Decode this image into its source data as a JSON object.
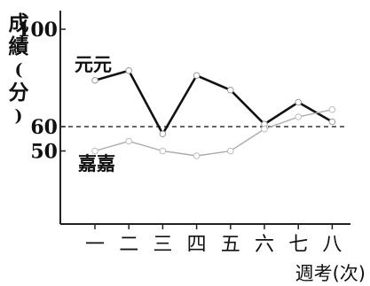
{
  "chart_data": {
    "type": "line",
    "categories": [
      "一",
      "二",
      "三",
      "四",
      "五",
      "六",
      "七",
      "八"
    ],
    "xlabel": "週考(次)",
    "ylabel": "成績(分)",
    "yticks": [
      100,
      60,
      50
    ],
    "ylim": [
      20,
      100
    ],
    "series": [
      {
        "name": "元元",
        "values": [
          79,
          83,
          57,
          81,
          75,
          61,
          70,
          62
        ]
      },
      {
        "name": "嘉嘉",
        "values": [
          50,
          54,
          50,
          48,
          50,
          59,
          64,
          67
        ]
      }
    ],
    "reference_line": {
      "value": 60,
      "style": "dashed"
    },
    "grid": false,
    "legend": "labels next to lines"
  }
}
